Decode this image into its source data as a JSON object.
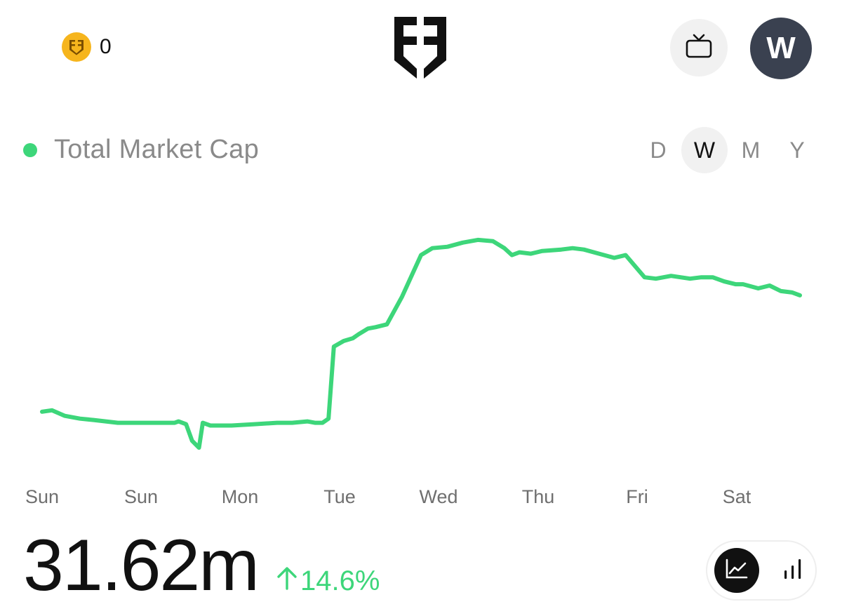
{
  "header": {
    "coin_icon": "coin-icon",
    "coin_count": "0",
    "logo_icon": "shield-logo-icon",
    "tv_icon": "tv-icon",
    "avatar_initial": "W"
  },
  "legend": {
    "label": "Total Market Cap",
    "color": "#3dd67a"
  },
  "range": {
    "options": [
      "D",
      "W",
      "M",
      "Y"
    ],
    "selected": "W"
  },
  "summary": {
    "value": "31.62m",
    "change": "14.6%",
    "change_direction": "up",
    "change_color": "#3dd67a"
  },
  "view_toggle": {
    "options": [
      {
        "name": "line-chart-view",
        "icon": "line-chart-icon",
        "active": true
      },
      {
        "name": "bar-chart-view",
        "icon": "bar-chart-icon",
        "active": false
      }
    ]
  },
  "chart_data": {
    "type": "line",
    "title": "",
    "xlabel": "",
    "ylabel": "",
    "x_ticks": [
      "Sun",
      "Sun",
      "Mon",
      "Tue",
      "Wed",
      "Thu",
      "Fri",
      "Sat"
    ],
    "grid": false,
    "series": [
      {
        "name": "Total Market Cap",
        "color": "#3dd67a",
        "values": [
          27.6,
          27.65,
          27.45,
          27.35,
          27.3,
          27.2,
          27.2,
          27.2,
          27.2,
          27.2,
          27.25,
          27.15,
          26.55,
          26.3,
          27.2,
          27.1,
          27.1,
          27.15,
          27.2,
          27.2,
          27.25,
          27.2,
          27.2,
          27.35,
          29.95,
          30.15,
          30.25,
          30.4,
          30.6,
          30.65,
          30.75,
          31.75,
          33.25,
          33.5,
          33.55,
          33.7,
          33.8,
          33.75,
          33.5,
          33.25,
          33.35,
          33.3,
          33.4,
          33.45,
          33.5,
          33.45,
          33.3,
          33.15,
          33.25,
          32.45,
          32.4,
          32.5,
          32.4,
          32.45,
          32.45,
          32.3,
          32.2,
          32.2,
          32.05,
          32.15,
          31.95,
          31.9,
          31.8
        ],
        "x": [
          0.0,
          0.013,
          0.03,
          0.05,
          0.068,
          0.1,
          0.13,
          0.155,
          0.168,
          0.175,
          0.18,
          0.19,
          0.198,
          0.207,
          0.212,
          0.222,
          0.25,
          0.28,
          0.31,
          0.33,
          0.35,
          0.36,
          0.37,
          0.378,
          0.385,
          0.398,
          0.41,
          0.418,
          0.43,
          0.44,
          0.455,
          0.475,
          0.5,
          0.515,
          0.535,
          0.555,
          0.575,
          0.595,
          0.61,
          0.62,
          0.63,
          0.645,
          0.66,
          0.685,
          0.7,
          0.715,
          0.735,
          0.755,
          0.77,
          0.795,
          0.81,
          0.83,
          0.855,
          0.87,
          0.885,
          0.9,
          0.915,
          0.925,
          0.945,
          0.96,
          0.975,
          0.99,
          1.0
        ]
      }
    ],
    "x_ticks_positions": [
      0,
      0.128,
      0.256,
      0.384,
      0.512,
      0.64,
      0.768,
      0.896
    ]
  }
}
